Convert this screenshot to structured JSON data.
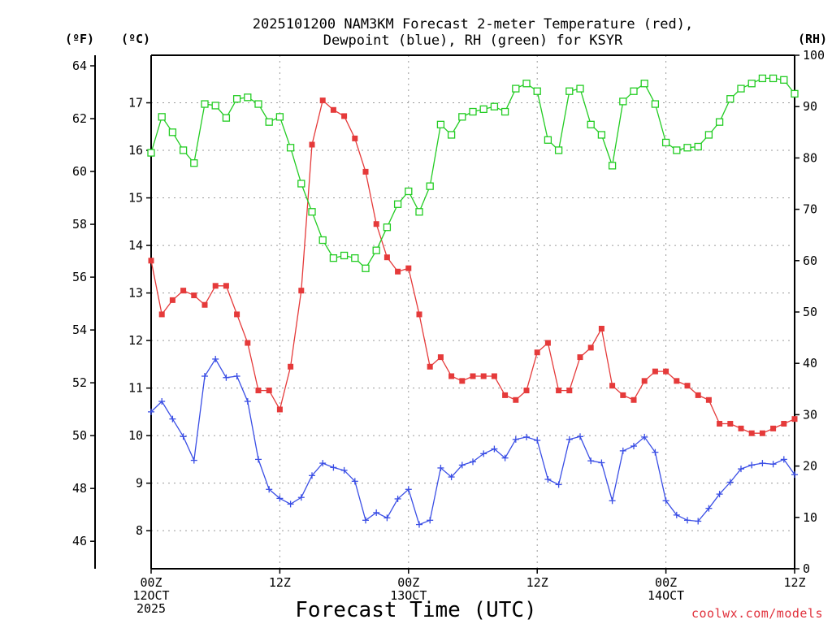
{
  "chart_data": {
    "type": "line",
    "title": [
      "2025101200 NAM3KM Forecast 2-meter Temperature (red),",
      "Dewpoint (blue), RH (green) for KSYR"
    ],
    "xlabel": "Forecast Time (UTC)",
    "credit": "coolwx.com/models",
    "units": {
      "fahrenheit": "(ºF)",
      "celsius": "(ºC)",
      "rh": "(RH)"
    },
    "x_range": [
      0,
      60
    ],
    "x_ticks": [
      {
        "hour": 0,
        "lines": [
          "00Z",
          "12OCT",
          "2025"
        ]
      },
      {
        "hour": 12,
        "lines": [
          "12Z"
        ]
      },
      {
        "hour": 24,
        "lines": [
          "00Z",
          "13OCT"
        ]
      },
      {
        "hour": 36,
        "lines": [
          "12Z"
        ]
      },
      {
        "hour": 48,
        "lines": [
          "00Z",
          "14OCT"
        ]
      },
      {
        "hour": 60,
        "lines": [
          "12Z"
        ]
      }
    ],
    "axis_celsius": {
      "range": [
        7.2,
        18.0
      ],
      "ticks": [
        8,
        9,
        10,
        11,
        12,
        13,
        14,
        15,
        16,
        17
      ]
    },
    "axis_fahrenheit": {
      "ticks": [
        46,
        48,
        50,
        52,
        54,
        56,
        58,
        60,
        62,
        64
      ]
    },
    "axis_rh": {
      "range": [
        0,
        100
      ],
      "ticks": [
        0,
        10,
        20,
        30,
        40,
        50,
        60,
        70,
        80,
        90,
        100
      ]
    },
    "grid": true,
    "series": [
      {
        "name": "Temperature",
        "unit": "C",
        "color": "#e53a3a",
        "marker": "filled-square",
        "x": [
          0,
          1,
          2,
          3,
          4,
          5,
          6,
          7,
          8,
          9,
          10,
          11,
          12,
          13,
          14,
          15,
          16,
          17,
          18,
          19,
          20,
          21,
          22,
          23,
          24,
          25,
          26,
          27,
          28,
          29,
          30,
          31,
          32,
          33,
          34,
          35,
          36,
          37,
          38,
          39,
          40,
          41,
          42,
          43,
          44,
          45,
          46,
          47,
          48,
          49,
          50,
          51,
          52,
          53,
          54,
          55,
          56,
          57,
          58,
          59,
          60
        ],
        "values": [
          13.68,
          12.55,
          12.85,
          13.05,
          12.95,
          12.75,
          13.15,
          13.15,
          12.55,
          11.95,
          10.95,
          10.95,
          10.55,
          11.45,
          13.05,
          16.12,
          17.05,
          16.85,
          16.72,
          16.25,
          15.55,
          14.45,
          13.75,
          13.45,
          13.52,
          12.55,
          11.45,
          11.65,
          11.25,
          11.15,
          11.25,
          11.25,
          11.25,
          10.85,
          10.75,
          10.95,
          11.75,
          11.95,
          10.95,
          10.95,
          11.65,
          11.85,
          12.25,
          11.05,
          10.85,
          10.75,
          11.15,
          11.35,
          11.35,
          11.15,
          11.05,
          10.85,
          10.75,
          10.25,
          10.25,
          10.15,
          10.05,
          10.05,
          10.15,
          10.25,
          10.35
        ]
      },
      {
        "name": "Dewpoint",
        "unit": "C",
        "color": "#3a4ee5",
        "marker": "plus",
        "x": [
          0,
          1,
          2,
          3,
          4,
          5,
          6,
          7,
          8,
          9,
          10,
          11,
          12,
          13,
          14,
          15,
          16,
          17,
          18,
          19,
          20,
          21,
          22,
          23,
          24,
          25,
          26,
          27,
          28,
          29,
          30,
          31,
          32,
          33,
          34,
          35,
          36,
          37,
          38,
          39,
          40,
          41,
          42,
          43,
          44,
          45,
          46,
          47,
          48,
          49,
          50,
          51,
          52,
          53,
          54,
          55,
          56,
          57,
          58,
          59,
          60
        ],
        "values": [
          10.5,
          10.72,
          10.35,
          9.98,
          9.48,
          11.25,
          11.61,
          11.22,
          11.25,
          10.72,
          9.5,
          8.87,
          8.68,
          8.56,
          8.7,
          9.16,
          9.42,
          9.33,
          9.27,
          9.04,
          8.22,
          8.38,
          8.27,
          8.67,
          8.87,
          8.13,
          8.22,
          9.32,
          9.13,
          9.38,
          9.45,
          9.62,
          9.72,
          9.53,
          9.92,
          9.97,
          9.9,
          9.08,
          8.97,
          9.92,
          9.98,
          9.47,
          9.43,
          8.63,
          9.68,
          9.78,
          9.97,
          9.65,
          8.63,
          8.33,
          8.22,
          8.2,
          8.47,
          8.77,
          9.02,
          9.3,
          9.38,
          9.42,
          9.4,
          9.5,
          9.18
        ]
      },
      {
        "name": "RH",
        "unit": "%",
        "color": "#22cc22",
        "marker": "open-square",
        "x": [
          0,
          1,
          2,
          3,
          4,
          5,
          6,
          7,
          8,
          9,
          10,
          11,
          12,
          13,
          14,
          15,
          16,
          17,
          18,
          19,
          20,
          21,
          22,
          23,
          24,
          25,
          26,
          27,
          28,
          29,
          30,
          31,
          32,
          33,
          34,
          35,
          36,
          37,
          38,
          39,
          40,
          41,
          42,
          43,
          44,
          45,
          46,
          47,
          48,
          49,
          50,
          51,
          52,
          53,
          54,
          55,
          56,
          57,
          58,
          59,
          60
        ],
        "values": [
          81,
          88,
          85,
          81.5,
          79,
          90.5,
          90.2,
          87.8,
          91.5,
          91.8,
          90.5,
          87,
          88,
          82,
          75,
          69.5,
          64,
          60.5,
          61,
          60.5,
          58.5,
          62,
          66.5,
          71,
          73.5,
          69.5,
          74.5,
          86.5,
          84.5,
          88,
          89,
          89.5,
          90,
          89,
          93.5,
          94.5,
          93,
          83.5,
          81.5,
          93,
          93.5,
          86.5,
          84.5,
          78.5,
          91,
          93,
          94.5,
          90.5,
          83,
          81.5,
          82,
          82.2,
          84.5,
          87,
          91.5,
          93.5,
          94.5,
          95.5,
          95.5,
          95.2,
          92.5
        ]
      }
    ]
  }
}
